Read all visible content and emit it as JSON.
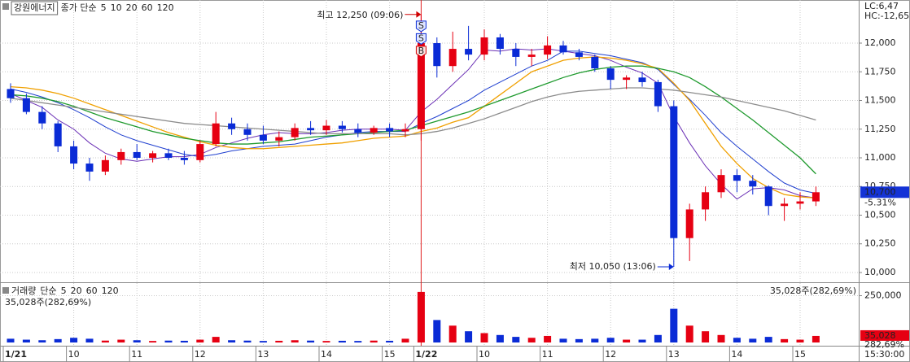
{
  "chart_data": [
    {
      "type": "candlestick",
      "title": "강원에너지",
      "legend_label": "종가 단순",
      "open": [
        11600,
        11520,
        11400,
        11300,
        11100,
        10950,
        10880,
        10980,
        11050,
        11000,
        11040,
        11000,
        10980,
        11120,
        11300,
        11250,
        11200,
        11150,
        11180,
        11260,
        11240,
        11280,
        11250,
        11220,
        11260,
        11230,
        11250,
        12000,
        11800,
        11950,
        11900,
        12050,
        11950,
        11880,
        11900,
        11980,
        11920,
        11880,
        11780,
        11680,
        11700,
        11660,
        11450,
        10300,
        10550,
        10700,
        10850,
        10800,
        10750,
        10580,
        10600,
        10620
      ],
      "high": [
        11650,
        11560,
        11450,
        11320,
        11150,
        11000,
        11020,
        11080,
        11120,
        11060,
        11080,
        11060,
        11150,
        11400,
        11350,
        11300,
        11280,
        11230,
        11300,
        11320,
        11330,
        11320,
        11300,
        11280,
        11300,
        11300,
        12250,
        12050,
        12100,
        12150,
        12120,
        12080,
        12000,
        11950,
        12060,
        12020,
        11950,
        11900,
        11800,
        11720,
        11750,
        11680,
        11500,
        10600,
        10750,
        10900,
        10900,
        10850,
        10760,
        10650,
        10700,
        10750
      ],
      "low": [
        11480,
        11380,
        11250,
        11050,
        10900,
        10800,
        10850,
        10940,
        10980,
        10960,
        10980,
        10940,
        10960,
        11100,
        11200,
        11150,
        11120,
        11100,
        11150,
        11200,
        11200,
        11220,
        11180,
        11200,
        11180,
        11180,
        11150,
        11700,
        11750,
        11850,
        11850,
        11900,
        11800,
        11800,
        11860,
        11900,
        11850,
        11750,
        11600,
        11600,
        11620,
        11400,
        10050,
        10100,
        10450,
        10650,
        10700,
        10680,
        10500,
        10450,
        10550,
        10580
      ],
      "close": [
        11520,
        11400,
        11300,
        11100,
        10950,
        10880,
        10980,
        11050,
        11000,
        11040,
        11000,
        10980,
        11120,
        11300,
        11250,
        11200,
        11150,
        11180,
        11260,
        11240,
        11280,
        11250,
        11220,
        11260,
        11230,
        11250,
        12000,
        11800,
        11950,
        11900,
        12050,
        11950,
        11880,
        11900,
        11980,
        11920,
        11880,
        11780,
        11680,
        11700,
        11660,
        11450,
        10300,
        10550,
        10700,
        10850,
        10800,
        10750,
        10580,
        10600,
        10620,
        10700
      ],
      "up_color": "#e60012",
      "down_color": "#0a2bd6",
      "series": [
        {
          "name": "5",
          "color": "#6a2fb5",
          "values": [
            11560,
            11500,
            11440,
            11330,
            11250,
            11130,
            11040,
            10990,
            10970,
            10990,
            11010,
            11010,
            11030,
            11090,
            11130,
            11170,
            11200,
            11220,
            11210,
            11210,
            11220,
            11240,
            11250,
            11250,
            11250,
            11240,
            11400,
            11510,
            11640,
            11770,
            11940,
            11930,
            11950,
            11940,
            11950,
            11930,
            11910,
            11890,
            11850,
            11790,
            11740,
            11650,
            11360,
            11130,
            10930,
            10770,
            10640,
            10730,
            10740,
            10720,
            10670,
            10650
          ]
        },
        {
          "name": "10",
          "color": "#1f3fcf",
          "values": [
            11600,
            11570,
            11530,
            11480,
            11420,
            11350,
            11270,
            11200,
            11150,
            11110,
            11070,
            11030,
            11010,
            11030,
            11060,
            11080,
            11100,
            11110,
            11120,
            11150,
            11180,
            11200,
            11220,
            11230,
            11230,
            11230,
            11300,
            11360,
            11430,
            11500,
            11590,
            11660,
            11730,
            11800,
            11850,
            11930,
            11930,
            11910,
            11890,
            11860,
            11830,
            11770,
            11640,
            11510,
            11370,
            11220,
            11100,
            10990,
            10880,
            10780,
            10720,
            10690
          ]
        },
        {
          "name": "20",
          "color": "#f0a000",
          "values": [
            11620,
            11610,
            11590,
            11560,
            11520,
            11470,
            11420,
            11370,
            11320,
            11270,
            11220,
            11180,
            11140,
            11110,
            11090,
            11080,
            11080,
            11090,
            11100,
            11110,
            11120,
            11130,
            11150,
            11170,
            11180,
            11190,
            11230,
            11260,
            11310,
            11350,
            11450,
            11550,
            11650,
            11750,
            11800,
            11850,
            11870,
            11880,
            11870,
            11850,
            11820,
            11780,
            11650,
            11500,
            11300,
            11100,
            10950,
            10820,
            10740,
            10680,
            10660,
            10650
          ]
        },
        {
          "name": "60",
          "color": "#1f9a2e",
          "values": [
            11550,
            11540,
            11520,
            11490,
            11450,
            11400,
            11350,
            11310,
            11270,
            11230,
            11200,
            11170,
            11150,
            11130,
            11120,
            11120,
            11130,
            11140,
            11160,
            11180,
            11190,
            11200,
            11210,
            11220,
            11230,
            11240,
            11280,
            11320,
            11360,
            11400,
            11450,
            11500,
            11550,
            11600,
            11650,
            11700,
            11740,
            11770,
            11790,
            11800,
            11800,
            11780,
            11750,
            11700,
            11620,
            11530,
            11430,
            11330,
            11220,
            11110,
            11000,
            10860
          ]
        },
        {
          "name": "120",
          "color": "#8c8c8c",
          "values": [
            11520,
            11500,
            11480,
            11460,
            11440,
            11420,
            11400,
            11380,
            11360,
            11340,
            11320,
            11300,
            11290,
            11280,
            11270,
            11260,
            11250,
            11240,
            11230,
            11220,
            11210,
            11210,
            11210,
            11210,
            11210,
            11200,
            11210,
            11230,
            11260,
            11300,
            11340,
            11390,
            11440,
            11490,
            11530,
            11560,
            11580,
            11590,
            11600,
            11610,
            11610,
            11600,
            11590,
            11570,
            11550,
            11530,
            11500,
            11470,
            11440,
            11410,
            11370,
            11330
          ]
        }
      ],
      "ylim": [
        9929,
        12376
      ],
      "yticks": [
        {
          "value": 10000,
          "label": "10,000"
        },
        {
          "value": 10250,
          "label": "10,250"
        },
        {
          "value": 10500,
          "label": "10,500"
        },
        {
          "value": 10750,
          "label": "10,750"
        },
        {
          "value": 11000,
          "label": "11,000"
        },
        {
          "value": 11250,
          "label": "11,250"
        },
        {
          "value": 11500,
          "label": "11,500"
        },
        {
          "value": 11750,
          "label": "11,750"
        },
        {
          "value": 12000,
          "label": "12,000"
        }
      ],
      "grid": true,
      "high_note": {
        "text": "최고 12,250 (09:06)",
        "value": 12250
      },
      "low_note": {
        "text": "최저 10,050 (13:06)",
        "value": 10050
      },
      "signals": [
        {
          "label": "S",
          "value": 12150
        },
        {
          "label": "S",
          "value": 12040
        },
        {
          "label": "B",
          "value": 11930
        }
      ],
      "last_price": {
        "value": 10700,
        "label": "10,700"
      },
      "change": "-5.31%",
      "lc": "LC:6,47",
      "hc": "HC:-12,65"
    },
    {
      "type": "bar",
      "title": "거래량",
      "legend_label": "단순",
      "legend": [
        {
          "name": "5",
          "color": "#6a2fb5"
        },
        {
          "name": "20",
          "color": "#f0a000"
        },
        {
          "name": "60",
          "color": "#1f9a2e"
        },
        {
          "name": "120",
          "color": "#8c8c8c"
        }
      ],
      "categories": [
        "1/21",
        null,
        null,
        null,
        "10",
        null,
        null,
        null,
        "11",
        null,
        null,
        null,
        "12",
        null,
        null,
        null,
        "13",
        null,
        null,
        null,
        "14",
        null,
        null,
        null,
        "15",
        null,
        "1/22",
        null,
        null,
        null,
        "10",
        null,
        null,
        null,
        "11",
        null,
        null,
        null,
        "12",
        null,
        null,
        null,
        "13",
        null,
        null,
        null,
        "14",
        null,
        null,
        null,
        "15",
        null
      ],
      "values": [
        20000,
        15000,
        12000,
        18000,
        25000,
        20000,
        10000,
        15000,
        12000,
        8000,
        10000,
        9000,
        15000,
        30000,
        12000,
        10000,
        8000,
        9000,
        12000,
        10000,
        8000,
        9000,
        8000,
        10000,
        9000,
        20000,
        270000,
        120000,
        90000,
        60000,
        50000,
        40000,
        30000,
        25000,
        35000,
        20000,
        18000,
        20000,
        25000,
        15000,
        15000,
        40000,
        180000,
        90000,
        60000,
        40000,
        25000,
        20000,
        30000,
        18000,
        15000,
        35028
      ],
      "ylim": [
        0,
        300000
      ],
      "yticks": [
        {
          "value": 250000,
          "label": "250,000"
        }
      ],
      "summary": "35,028주(282,69%)",
      "last_value": {
        "value": 35028,
        "label": "35,028"
      },
      "last_ratio": "282,69%",
      "time": "15:30:00"
    }
  ]
}
